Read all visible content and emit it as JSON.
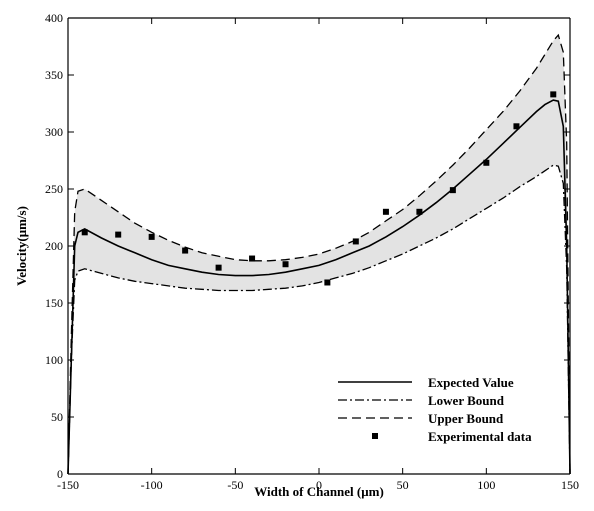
{
  "chart_data": {
    "type": "line",
    "xlabel": "Width of Channel (μm)",
    "ylabel": "Velocity(μm/s)",
    "xlim": [
      -150,
      150
    ],
    "ylim": [
      0,
      400
    ],
    "x_ticks": [
      -150,
      -100,
      -50,
      0,
      50,
      100,
      150
    ],
    "y_ticks": [
      0,
      50,
      100,
      150,
      200,
      250,
      300,
      350,
      400
    ],
    "grid": false,
    "legend_position": "bottom-right",
    "band": {
      "between": [
        "Lower Bound",
        "Upper Bound"
      ],
      "color": "#e3e3e3"
    },
    "series": [
      {
        "name": "Expected Value",
        "style": "solid",
        "x": [
          -150,
          -148,
          -146,
          -144,
          -140,
          -130,
          -120,
          -110,
          -100,
          -90,
          -80,
          -70,
          -60,
          -50,
          -40,
          -30,
          -20,
          -10,
          0,
          10,
          20,
          30,
          40,
          50,
          60,
          70,
          80,
          90,
          100,
          110,
          120,
          130,
          135,
          140,
          143,
          146,
          148,
          150
        ],
        "y": [
          0,
          100,
          200,
          212,
          215,
          207,
          200,
          194,
          188,
          183,
          180,
          177,
          175,
          174,
          174,
          175,
          177,
          180,
          183,
          188,
          194,
          200,
          208,
          217,
          227,
          238,
          250,
          263,
          276,
          290,
          304,
          318,
          324,
          328,
          327,
          305,
          200,
          0
        ]
      },
      {
        "name": "Lower Bound",
        "style": "dashdot",
        "x": [
          -150,
          -148,
          -146,
          -144,
          -140,
          -130,
          -120,
          -110,
          -100,
          -90,
          -80,
          -70,
          -60,
          -50,
          -40,
          -30,
          -20,
          -10,
          0,
          10,
          20,
          30,
          40,
          50,
          60,
          70,
          80,
          90,
          100,
          110,
          120,
          130,
          135,
          140,
          143,
          146,
          148,
          150
        ],
        "y": [
          0,
          100,
          170,
          178,
          180,
          176,
          172,
          169,
          167,
          165,
          163,
          162,
          161,
          161,
          161,
          162,
          163,
          165,
          168,
          172,
          176,
          181,
          187,
          193,
          200,
          207,
          215,
          224,
          233,
          242,
          252,
          261,
          266,
          271,
          270,
          255,
          180,
          0
        ]
      },
      {
        "name": "Upper Bound",
        "style": "dashed",
        "x": [
          -150,
          -148,
          -146,
          -144,
          -140,
          -130,
          -120,
          -110,
          -100,
          -90,
          -80,
          -70,
          -60,
          -50,
          -40,
          -30,
          -20,
          -10,
          0,
          10,
          20,
          30,
          40,
          50,
          60,
          70,
          80,
          90,
          100,
          110,
          120,
          130,
          135,
          140,
          143,
          146,
          148,
          150
        ],
        "y": [
          0,
          120,
          230,
          248,
          250,
          240,
          230,
          220,
          212,
          205,
          199,
          194,
          191,
          188,
          187,
          187,
          188,
          190,
          193,
          198,
          204,
          212,
          222,
          232,
          244,
          257,
          271,
          286,
          302,
          318,
          336,
          356,
          368,
          380,
          385,
          370,
          290,
          0
        ]
      },
      {
        "name": "Experimental data",
        "style": "markers",
        "x": [
          -140,
          -120,
          -100,
          -80,
          -60,
          -40,
          -20,
          5,
          22,
          40,
          60,
          80,
          100,
          118,
          140
        ],
        "y": [
          212,
          210,
          208,
          196,
          181,
          189,
          184,
          168,
          204,
          230,
          230,
          249,
          273,
          305,
          333
        ]
      }
    ]
  }
}
